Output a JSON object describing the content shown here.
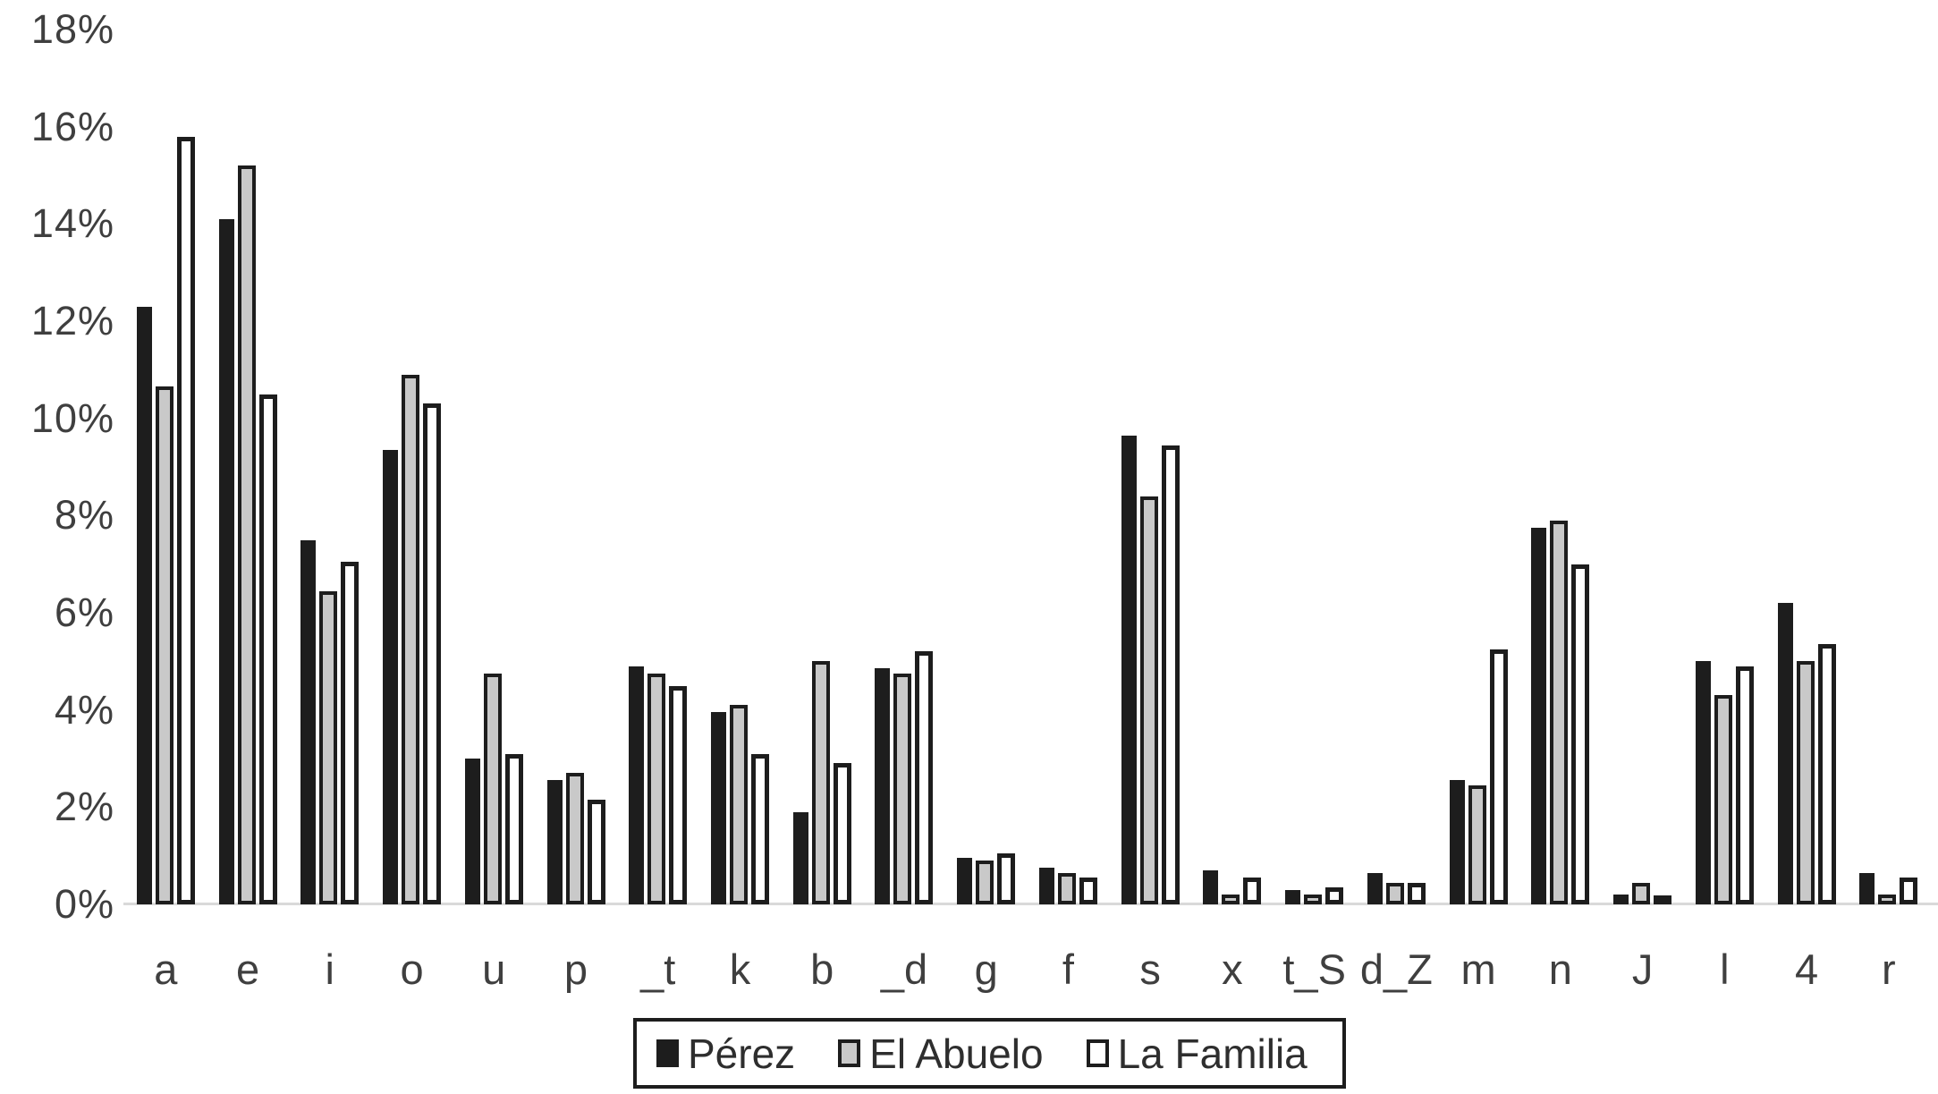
{
  "chart_data": {
    "type": "bar",
    "title": "",
    "xlabel": "",
    "ylabel": "",
    "grid": false,
    "legend_position": "bottom",
    "ylim": [
      0,
      18
    ],
    "y_tick_step": 2,
    "y_tick_labels": [
      "18%",
      "16%",
      "14%",
      "12%",
      "10%",
      "8%",
      "6%",
      "4%",
      "2%",
      "0%"
    ],
    "categories": [
      "a",
      "e",
      "i",
      "o",
      "u",
      "p",
      "_t",
      "k",
      "b",
      "_d",
      "g",
      "f",
      "s",
      "x",
      "t_S",
      "d_Z",
      "m",
      "n",
      "J",
      "l",
      "4",
      "r"
    ],
    "series": [
      {
        "name": "Pérez",
        "fill_color": "#1d1d1d",
        "border_color": "#1d1d1d",
        "values": [
          12.3,
          14.1,
          7.5,
          9.35,
          3.0,
          2.55,
          4.9,
          3.95,
          1.9,
          4.85,
          0.95,
          0.75,
          9.65,
          0.7,
          0.3,
          0.65,
          2.55,
          7.75,
          0.2,
          5.0,
          6.2,
          0.65
        ]
      },
      {
        "name": "El Abuelo",
        "fill_color": "#c9c9c9",
        "border_color": "#1d1d1d",
        "values": [
          10.65,
          15.2,
          6.45,
          10.9,
          4.75,
          2.7,
          4.75,
          4.1,
          5.0,
          4.75,
          0.9,
          0.65,
          8.4,
          0.2,
          0.2,
          0.45,
          2.45,
          7.9,
          0.45,
          4.3,
          5.0,
          0.2
        ]
      },
      {
        "name": "La Familia",
        "fill_color": "#ffffff",
        "border_color": "#1d1d1d",
        "values": [
          15.8,
          10.5,
          7.05,
          10.3,
          3.1,
          2.15,
          4.5,
          3.1,
          2.9,
          5.2,
          1.05,
          0.55,
          9.45,
          0.55,
          0.35,
          0.45,
          5.25,
          7.0,
          0.15,
          4.9,
          5.35,
          0.55
        ]
      }
    ]
  },
  "colors": {
    "axis_text": "#3f3f3f",
    "baseline": "#d9d9d9",
    "background": "#ffffff"
  }
}
